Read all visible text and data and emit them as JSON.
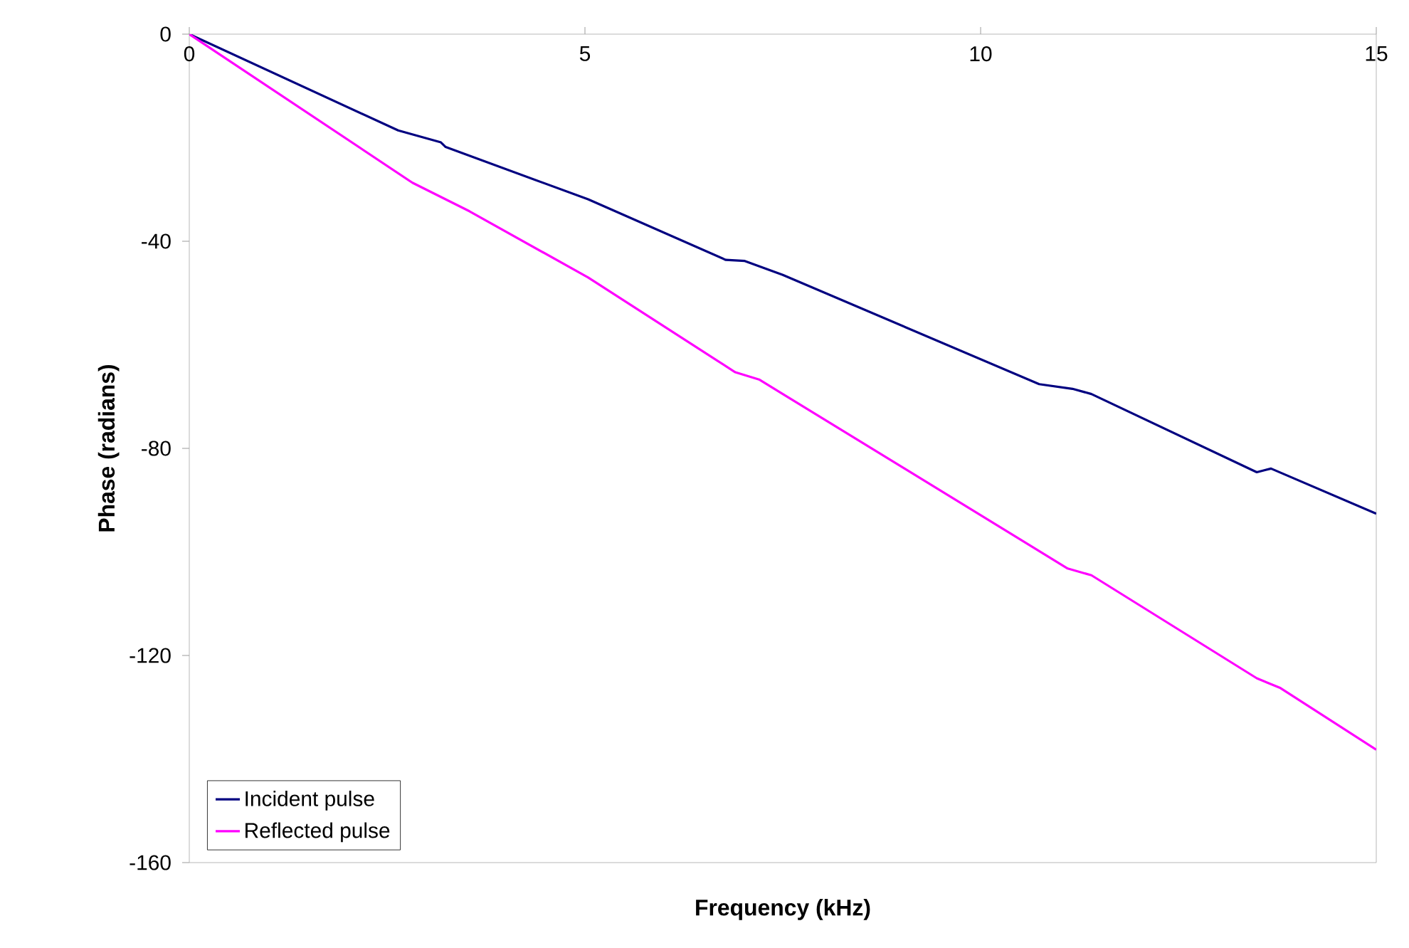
{
  "chart_data": {
    "type": "line",
    "xlabel": "Frequency (kHz)",
    "ylabel": "Phase (radians)",
    "xlim": [
      0,
      15
    ],
    "xticks": [
      0,
      5,
      10,
      15
    ],
    "ylim": [
      -160,
      0
    ],
    "yticks": [
      -160,
      -120,
      -80,
      -40,
      0
    ],
    "grid": false,
    "legend": "bottom left",
    "marker": "none",
    "line_style": "solid",
    "series": [
      {
        "name": "Incident pulse",
        "color": "#000080",
        "x": [
          0,
          2.64,
          3.18,
          3.24,
          5.04,
          6.78,
          7.02,
          7.5,
          10.74,
          11.16,
          11.4,
          13.49,
          13.67,
          15
        ],
        "values": [
          0,
          -18.6,
          -20.9,
          -21.8,
          -31.9,
          -43.6,
          -43.8,
          -46.5,
          -67.6,
          -68.5,
          -69.5,
          -84.6,
          -83.9,
          -92.6
        ]
      },
      {
        "name": "Reflected pulse",
        "color": "#ff00ff",
        "x": [
          0,
          2.82,
          3.54,
          5.04,
          6.9,
          7.2,
          7.5,
          11.1,
          11.4,
          13.49,
          13.79,
          15
        ],
        "values": [
          0,
          -28.7,
          -34.2,
          -47,
          -65.3,
          -66.7,
          -69.5,
          -103.2,
          -104.5,
          -124.4,
          -126.3,
          -138.2
        ]
      }
    ]
  }
}
